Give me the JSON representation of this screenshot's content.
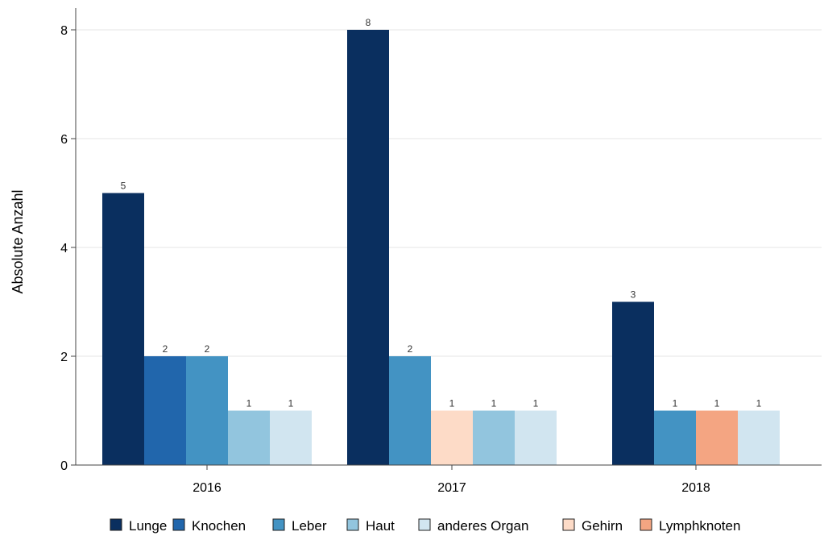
{
  "chart_data": {
    "type": "bar",
    "title": "",
    "xlabel": "",
    "ylabel": "Absolute Anzahl",
    "ylim": [
      0,
      8.4
    ],
    "yticks": [
      0,
      2,
      4,
      6,
      8
    ],
    "grid": true,
    "legend_position": "bottom",
    "categories": [
      "2016",
      "2017",
      "2018"
    ],
    "series": [
      {
        "name": "Lunge",
        "color": "#0a2f5f",
        "values": [
          5,
          8,
          3
        ]
      },
      {
        "name": "Knochen",
        "color": "#2166ac",
        "values": [
          2,
          null,
          null
        ]
      },
      {
        "name": "Leber",
        "color": "#4393c3",
        "values": [
          2,
          2,
          1
        ]
      },
      {
        "name": "Haut",
        "color": "#92c5de",
        "values": [
          1,
          1,
          null
        ]
      },
      {
        "name": "anderes Organ",
        "color": "#d1e5f0",
        "values": [
          1,
          1,
          1
        ]
      },
      {
        "name": "Gehirn",
        "color": "#fddbc7",
        "values": [
          null,
          1,
          null
        ]
      },
      {
        "name": "Lymphknoten",
        "color": "#f4a582",
        "values": [
          null,
          null,
          1
        ]
      }
    ],
    "bar_order": [
      [
        "Lunge",
        "Knochen",
        "Leber",
        "Haut",
        "anderes Organ"
      ],
      [
        "Lunge",
        "Leber",
        "Gehirn",
        "Haut",
        "anderes Organ"
      ],
      [
        "Lunge",
        "Leber",
        "Lymphknoten",
        "anderes Organ"
      ]
    ]
  }
}
